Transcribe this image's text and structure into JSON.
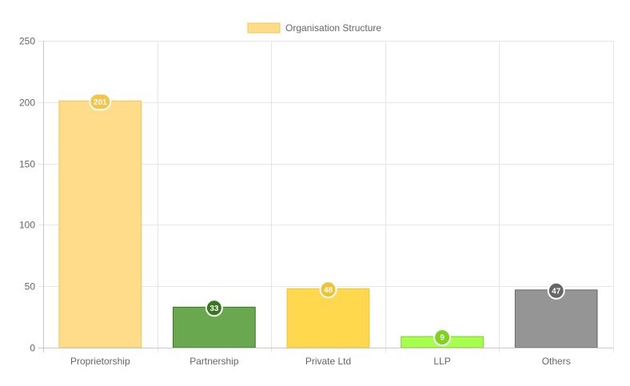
{
  "chart_data": {
    "type": "bar",
    "categories": [
      "Proprietorship",
      "Partnership",
      "Private Ltd",
      "LLP",
      "Others"
    ],
    "series": [
      {
        "name": "Organisation Structure",
        "values": [
          201,
          33,
          48,
          9,
          47
        ]
      }
    ],
    "bar_colors": [
      "#FFDC8A",
      "#6AA84F",
      "#FFD84D",
      "#A6FF4D",
      "#959595"
    ],
    "bar_borders": [
      "#F5C44A",
      "#38761D",
      "#F1C232",
      "#7ED321",
      "#666666"
    ],
    "badge_colors": [
      "#F5C44A",
      "#38761D",
      "#F1C232",
      "#7ED321",
      "#666666"
    ],
    "legend_swatch_color": "#FFDC8A",
    "legend_swatch_border": "#F5C44A",
    "ylim": [
      0,
      250
    ],
    "yticks": [
      0,
      50,
      100,
      150,
      200,
      250
    ],
    "grid": true,
    "legend_position": "top"
  }
}
